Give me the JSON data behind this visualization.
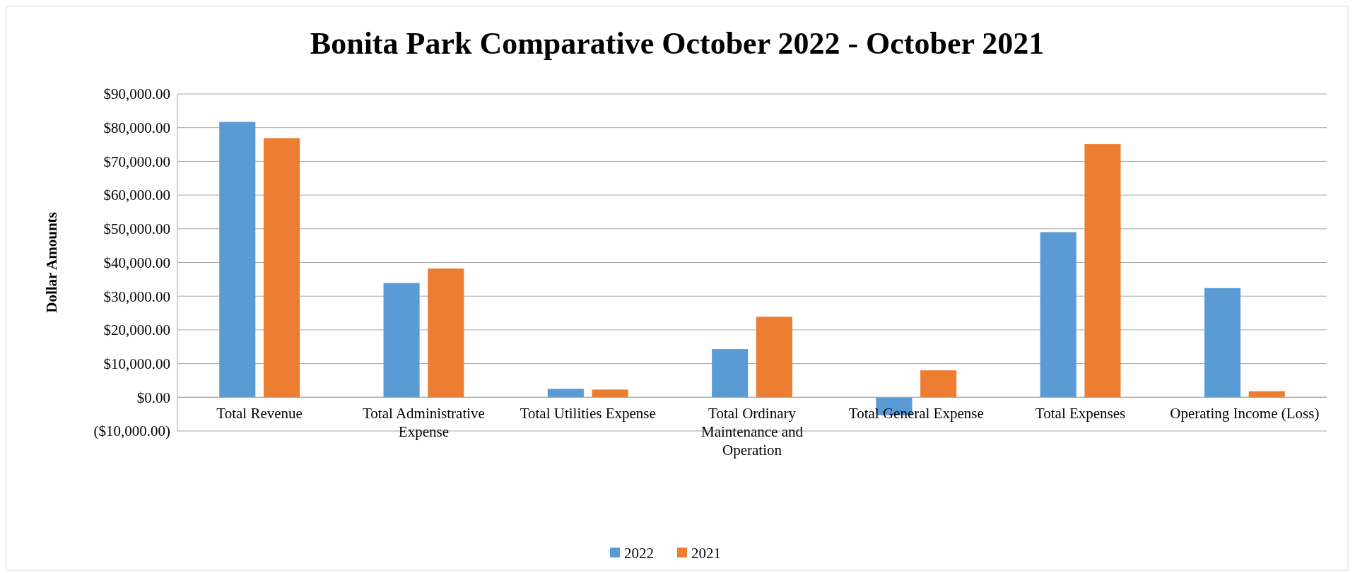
{
  "chart_data": {
    "type": "bar",
    "title": "Bonita Park Comparative October 2022 - October 2021",
    "ylabel": "Dollar Amounts",
    "categories": [
      "Total Revenue",
      "Total Administrative Expense",
      "Total Utilities Expense",
      "Total Ordinary Maintenance and Operation",
      "Total General Expense",
      "Total Expenses",
      "Operating Income (Loss)"
    ],
    "series": [
      {
        "name": "2022",
        "color": "#5b9bd5",
        "values": [
          81700,
          33900,
          2500,
          14300,
          -5300,
          49000,
          32400
        ]
      },
      {
        "name": "2021",
        "color": "#ed7d31",
        "values": [
          76900,
          38200,
          2300,
          23900,
          8000,
          75100,
          1800
        ]
      }
    ],
    "ylim": [
      -10000,
      90000
    ],
    "yticks": [
      {
        "value": -10000,
        "label": "($10,000.00)"
      },
      {
        "value": 0,
        "label": "$0.00"
      },
      {
        "value": 10000,
        "label": "$10,000.00"
      },
      {
        "value": 20000,
        "label": "$20,000.00"
      },
      {
        "value": 30000,
        "label": "$30,000.00"
      },
      {
        "value": 40000,
        "label": "$40,000.00"
      },
      {
        "value": 50000,
        "label": "$50,000.00"
      },
      {
        "value": 60000,
        "label": "$60,000.00"
      },
      {
        "value": 70000,
        "label": "$70,000.00"
      },
      {
        "value": 80000,
        "label": "$80,000.00"
      },
      {
        "value": 90000,
        "label": "$90,000.00"
      }
    ],
    "grid": "y",
    "legend": "bottom"
  }
}
